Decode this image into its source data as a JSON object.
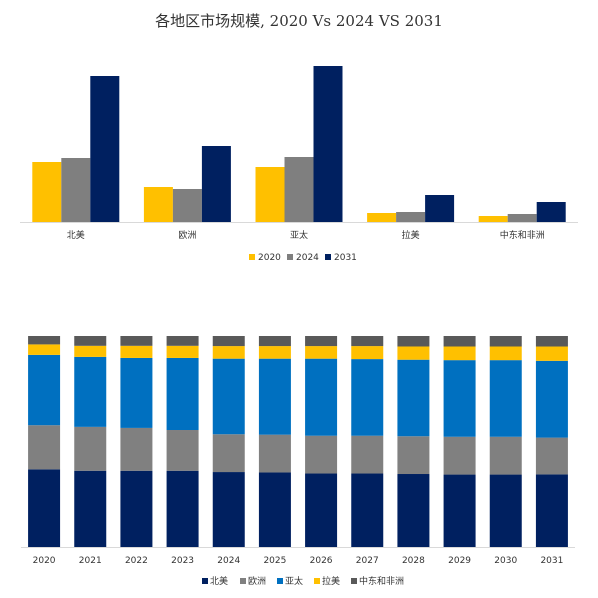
{
  "title": "各地区市场规模, 2020 Vs 2024 VS 2031",
  "colors": {
    "y2020": "#FFC000",
    "y2024": "#7F7F7F",
    "y2031": "#002060",
    "na": "#002060",
    "eu": "#808080",
    "apac": "#0070C0",
    "latam": "#FFC000",
    "mea": "#595959"
  },
  "chart_data": [
    {
      "type": "bar",
      "categories": [
        "北美",
        "欧洲",
        "亚太",
        "拉美",
        "中东和非洲"
      ],
      "series": [
        {
          "name": "2020",
          "values": [
            60,
            35,
            55,
            9,
            6
          ]
        },
        {
          "name": "2024",
          "values": [
            64,
            33,
            65,
            10,
            8
          ]
        },
        {
          "name": "2031",
          "values": [
            146,
            76,
            156,
            27,
            20
          ]
        }
      ],
      "ylim": [
        0,
        160
      ],
      "legend": "bottom"
    },
    {
      "type": "bar",
      "stacked": true,
      "percent": true,
      "categories": [
        "2020",
        "2021",
        "2022",
        "2023",
        "2024",
        "2025",
        "2026",
        "2027",
        "2028",
        "2029",
        "2030",
        "2031"
      ],
      "series": [
        {
          "name": "北美",
          "values": [
            37,
            36.5,
            36.5,
            36.5,
            35.7,
            35.5,
            35,
            35,
            34.8,
            34.5,
            34.5,
            34.5
          ]
        },
        {
          "name": "欧洲",
          "values": [
            21,
            21,
            20.5,
            19.5,
            18,
            18,
            18,
            18,
            18,
            18,
            18,
            17.5
          ]
        },
        {
          "name": "亚太",
          "values": [
            33.5,
            33.5,
            33.5,
            34.5,
            36,
            36.2,
            36.7,
            36.5,
            36.5,
            36.5,
            36.5,
            36.5
          ]
        },
        {
          "name": "拉美",
          "values": [
            5,
            5.3,
            5.8,
            5.8,
            6,
            6,
            6,
            6.2,
            6.3,
            6.5,
            6.5,
            6.8
          ]
        },
        {
          "name": "中东和非洲",
          "values": [
            4,
            4.7,
            4.7,
            4.7,
            4.8,
            4.8,
            4.8,
            4.8,
            5,
            5,
            5,
            5
          ]
        }
      ],
      "ylim": [
        0,
        100
      ],
      "legend": "bottom"
    }
  ]
}
